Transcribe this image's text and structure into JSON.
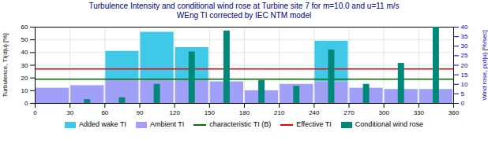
{
  "chart_data": {
    "type": "bar",
    "title": "Turbulence Intensity and conditional wind rose at Turbine site 7 for m=10.0 and u=11 m/s",
    "subtitle": "WEng TI corrected by IEC NTM model",
    "ylabel": "Turbulence, TI(d|u) [%]",
    "y2label": "Wind rose, p(d|u) [%/sec]",
    "x": [
      0,
      30,
      60,
      90,
      120,
      150,
      180,
      210,
      240,
      270,
      300,
      330
    ],
    "xlim": [
      0,
      360
    ],
    "xticks": [
      0,
      30,
      60,
      90,
      120,
      150,
      180,
      210,
      240,
      270,
      300,
      330,
      360
    ],
    "ylim": [
      0,
      60
    ],
    "yticks": [
      0,
      10,
      20,
      30,
      40,
      50,
      60
    ],
    "y2lim": [
      0,
      40
    ],
    "y2ticks": [
      0,
      5,
      10,
      15,
      20,
      25,
      30,
      35,
      40
    ],
    "stacked": true,
    "grid": true,
    "legend": "bottom",
    "series": [
      {
        "name": "Added wake TI",
        "type": "bar",
        "color": "#40c8e8",
        "values": [
          0,
          0,
          22,
          37,
          26,
          0,
          0,
          0,
          32,
          0,
          0,
          0
        ]
      },
      {
        "name": "Ambient TI",
        "type": "bar",
        "color": "#a0a0f8",
        "values": [
          12,
          14,
          19,
          19,
          18,
          17,
          10,
          15,
          17,
          12,
          11,
          11
        ]
      },
      {
        "name": "characteristic TI (B)",
        "type": "hline",
        "color": "#007000",
        "value": 19
      },
      {
        "name": "Effective TI",
        "type": "hline",
        "color": "#ee0000",
        "value": 27
      },
      {
        "name": "Conditional wind rose",
        "type": "bar",
        "axis": "y2",
        "color": "#008878",
        "values": [
          0,
          2,
          3,
          10,
          27,
          38,
          12,
          9,
          28,
          10,
          21,
          40
        ]
      }
    ]
  }
}
